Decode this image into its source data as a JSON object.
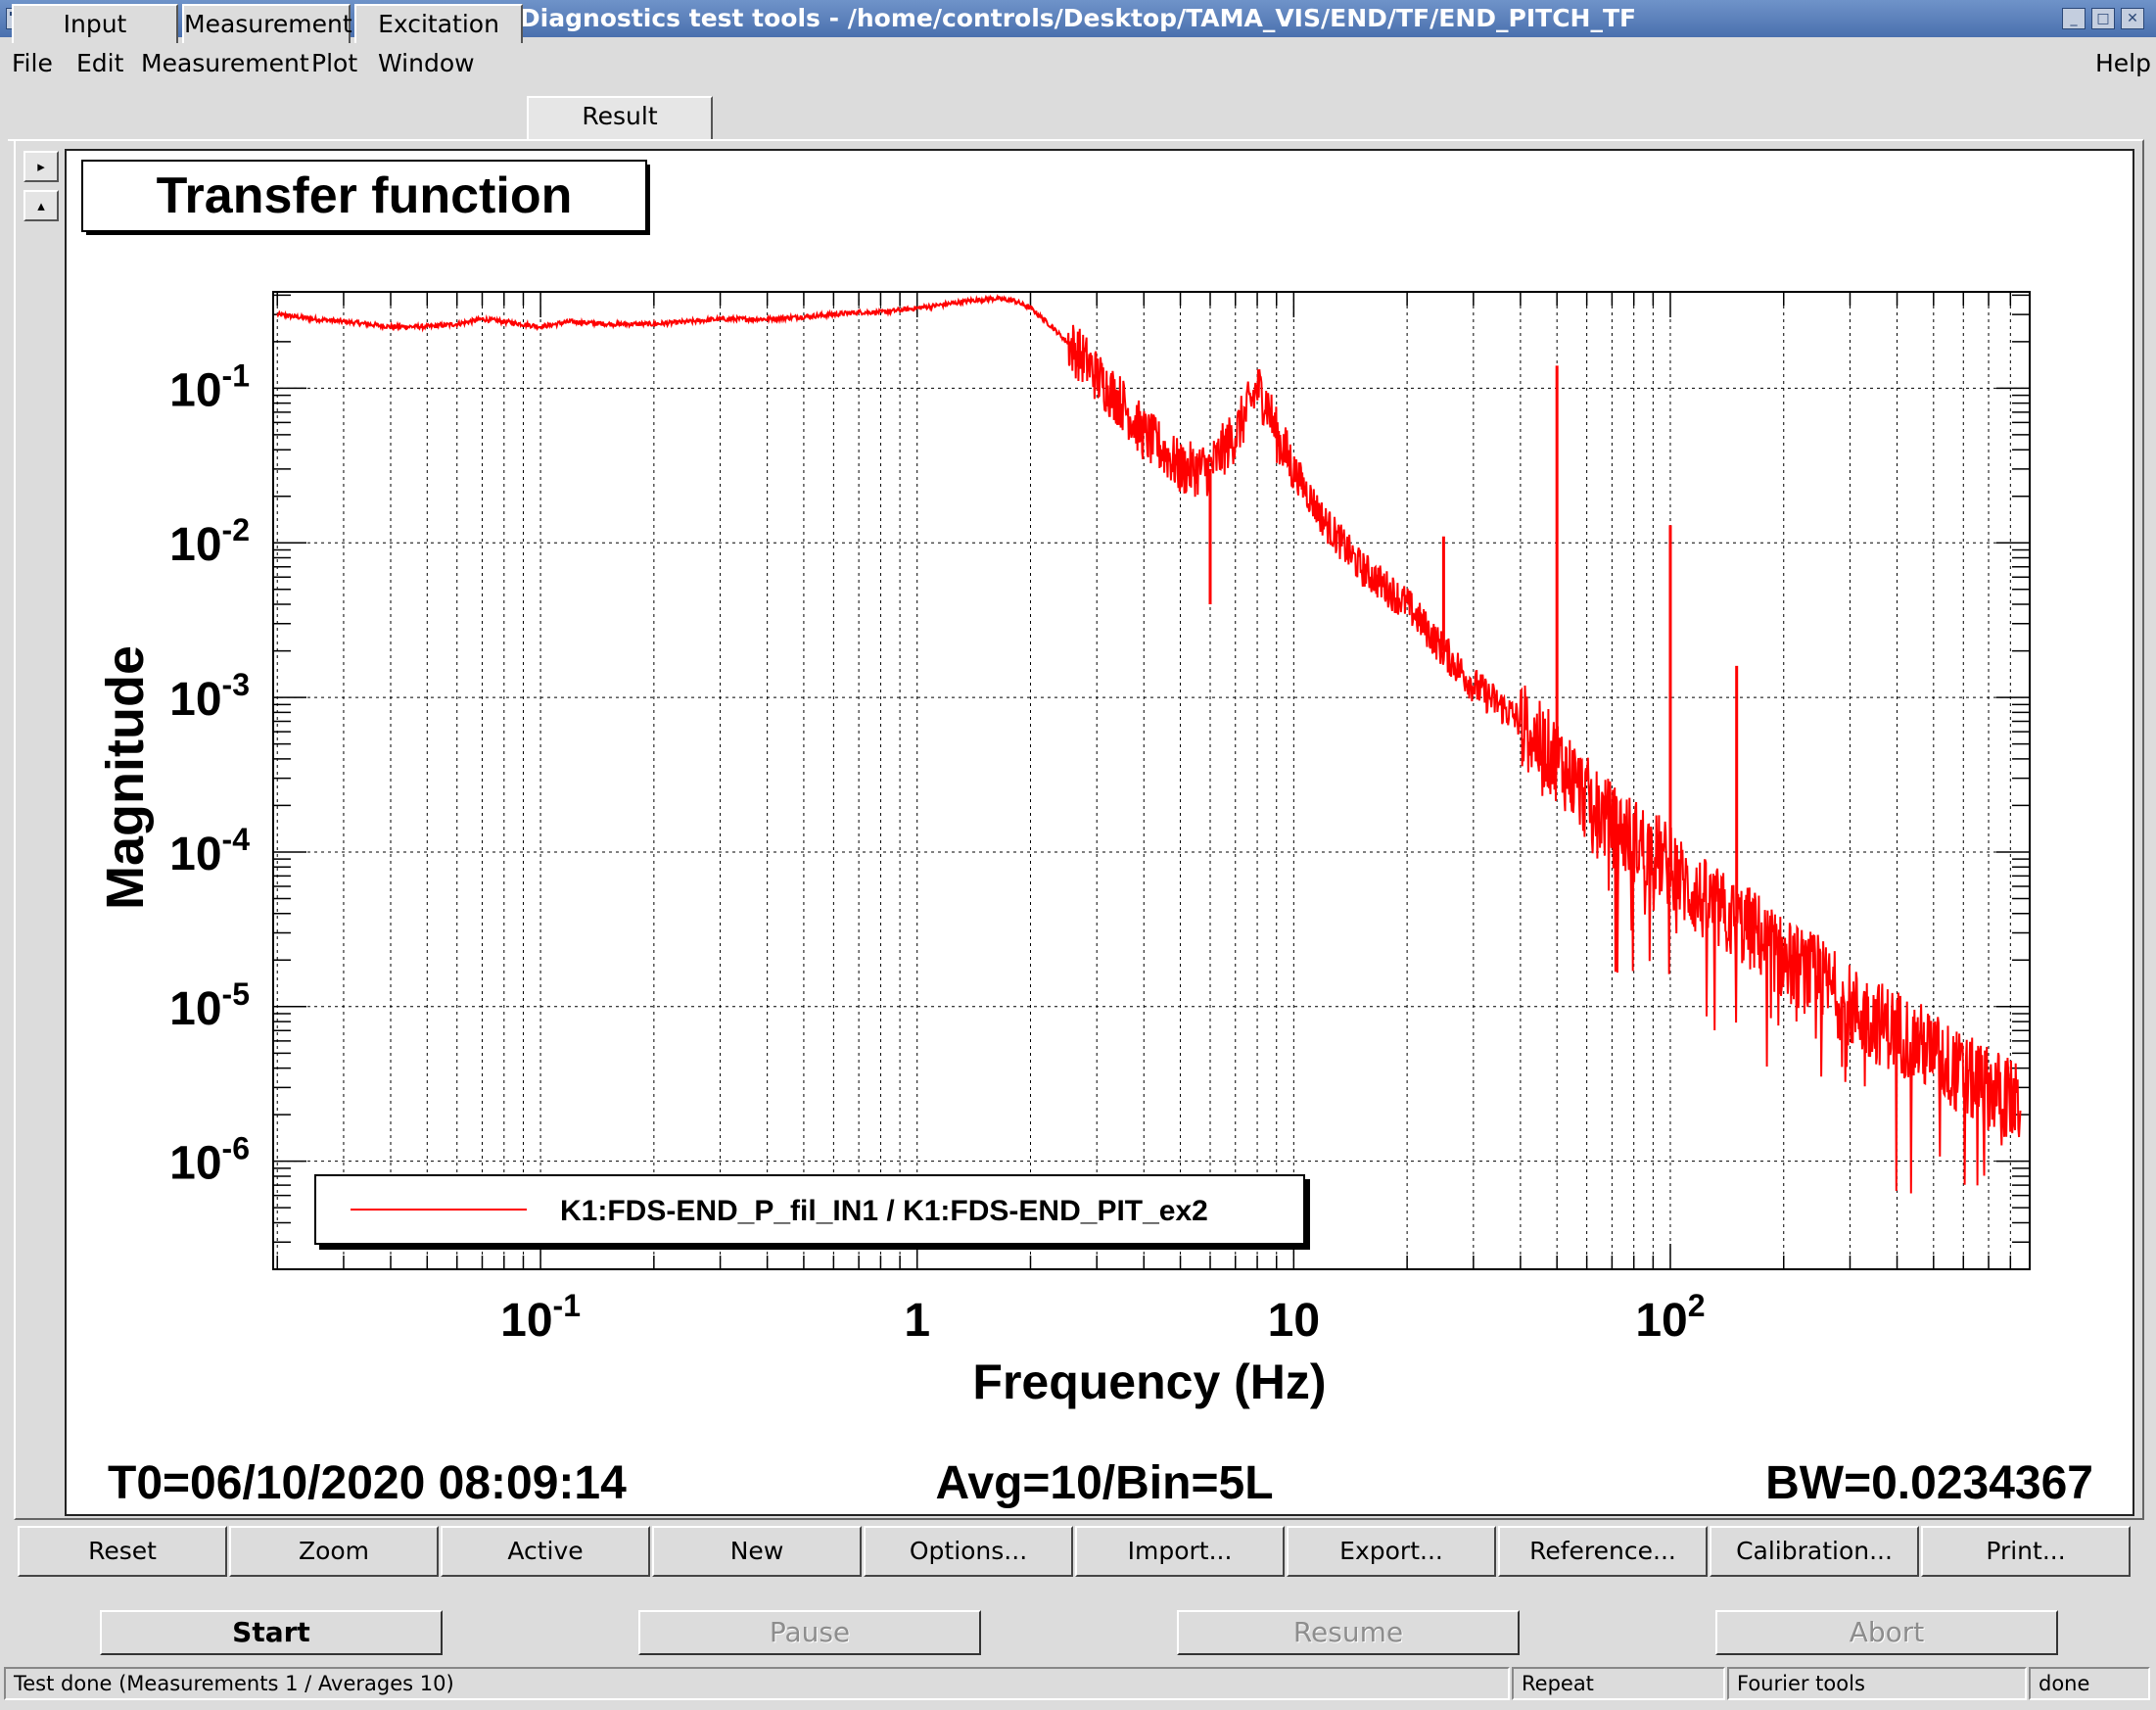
{
  "window": {
    "title": "Diagnostics test tools - /home/controls/Desktop/TAMA_VIS/END/TF/END_PITCH_TF"
  },
  "menu": {
    "file": "File",
    "edit": "Edit",
    "measurement": "Measurement",
    "plot": "Plot",
    "window": "Window",
    "help": "Help"
  },
  "tabs": [
    "Input",
    "Measurement",
    "Excitation",
    "Result"
  ],
  "selected_tab": "Result",
  "plot": {
    "title": "Transfer function",
    "footer_left": "T0=06/10/2020 08:09:14",
    "footer_center": "Avg=10/Bin=5L",
    "footer_right": "BW=0.0234367"
  },
  "chart_data": {
    "type": "line",
    "title": "Transfer function",
    "xlabel": "Frequency (Hz)",
    "ylabel": "Magnitude",
    "x_scale": "log",
    "y_scale": "log",
    "xlim": [
      0.0195,
      900
    ],
    "ylim": [
      2e-07,
      0.42
    ],
    "grid": true,
    "legend_placement": "bottom-left",
    "x_ticks": [
      {
        "value": 0.1,
        "base": "10",
        "exp": "-1"
      },
      {
        "value": 1,
        "base": "1",
        "exp": ""
      },
      {
        "value": 10,
        "base": "10",
        "exp": ""
      },
      {
        "value": 100,
        "base": "10",
        "exp": "2"
      }
    ],
    "y_ticks": [
      {
        "value": 0.1,
        "base": "10",
        "exp": "-1"
      },
      {
        "value": 0.01,
        "base": "10",
        "exp": "-2"
      },
      {
        "value": 0.001,
        "base": "10",
        "exp": "-3"
      },
      {
        "value": 0.0001,
        "base": "10",
        "exp": "-4"
      },
      {
        "value": 1e-05,
        "base": "10",
        "exp": "-5"
      },
      {
        "value": 1e-06,
        "base": "10",
        "exp": "-6"
      }
    ],
    "series": [
      {
        "name": "K1:FDS-END_P_fil_IN1 / K1:FDS-END_PIT_ex2",
        "color": "#ff0000",
        "x": [
          0.02,
          0.025,
          0.03,
          0.04,
          0.05,
          0.06,
          0.07,
          0.08,
          0.1,
          0.12,
          0.15,
          0.2,
          0.25,
          0.3,
          0.4,
          0.5,
          0.6,
          0.7,
          0.8,
          0.9,
          1.0,
          1.2,
          1.4,
          1.6,
          1.8,
          2.0,
          2.2,
          2.5,
          2.8,
          3.0,
          3.5,
          4.0,
          4.5,
          5.0,
          5.5,
          6.0,
          6.5,
          7.0,
          7.5,
          8.0,
          8.5,
          9.0,
          10,
          12,
          15,
          20,
          25,
          30,
          40,
          45,
          50,
          55,
          60,
          70,
          80,
          90,
          95,
          100,
          105,
          110,
          120,
          150,
          170,
          180,
          190,
          200,
          250,
          300,
          350,
          400,
          500,
          600,
          700,
          800,
          850
        ],
        "y": [
          0.3,
          0.28,
          0.27,
          0.25,
          0.25,
          0.26,
          0.28,
          0.27,
          0.25,
          0.27,
          0.26,
          0.26,
          0.27,
          0.28,
          0.28,
          0.29,
          0.3,
          0.31,
          0.31,
          0.32,
          0.33,
          0.35,
          0.37,
          0.38,
          0.37,
          0.33,
          0.27,
          0.2,
          0.15,
          0.12,
          0.08,
          0.05,
          0.04,
          0.03,
          0.03,
          0.03,
          0.04,
          0.05,
          0.07,
          0.1,
          0.08,
          0.05,
          0.03,
          0.014,
          0.007,
          0.004,
          0.002,
          0.0012,
          0.0007,
          0.0005,
          0.0004,
          0.0003,
          0.00022,
          0.00015,
          0.00012,
          0.0001,
          9e-05,
          8e-05,
          7e-05,
          6e-05,
          5e-05,
          3.5e-05,
          3e-05,
          2.5e-05,
          2.3e-05,
          2e-05,
          1.5e-05,
          1e-05,
          8e-06,
          7e-06,
          5e-06,
          3.5e-06,
          3e-06,
          2.5e-06,
          2.2e-06
        ]
      }
    ],
    "annotations": [
      {
        "label": "spike",
        "x": 25,
        "y": 0.011
      },
      {
        "label": "spike",
        "x": 50,
        "y": 0.14
      },
      {
        "label": "spike",
        "x": 100,
        "y": 0.013
      },
      {
        "label": "spike",
        "x": 150,
        "y": 0.0016
      },
      {
        "label": "dip",
        "x": 6,
        "y": 0.004
      }
    ]
  },
  "plot_buttons": [
    "Reset",
    "Zoom",
    "Active",
    "New",
    "Options...",
    "Import...",
    "Export...",
    "Reference...",
    "Calibration...",
    "Print..."
  ],
  "control_buttons": {
    "start": "Start",
    "pause": "Pause",
    "resume": "Resume",
    "abort": "Abort"
  },
  "status": {
    "message": "Test done (Measurements 1 / Averages 10)",
    "repeat": "Repeat",
    "fourier": "Fourier tools",
    "state": "done"
  }
}
